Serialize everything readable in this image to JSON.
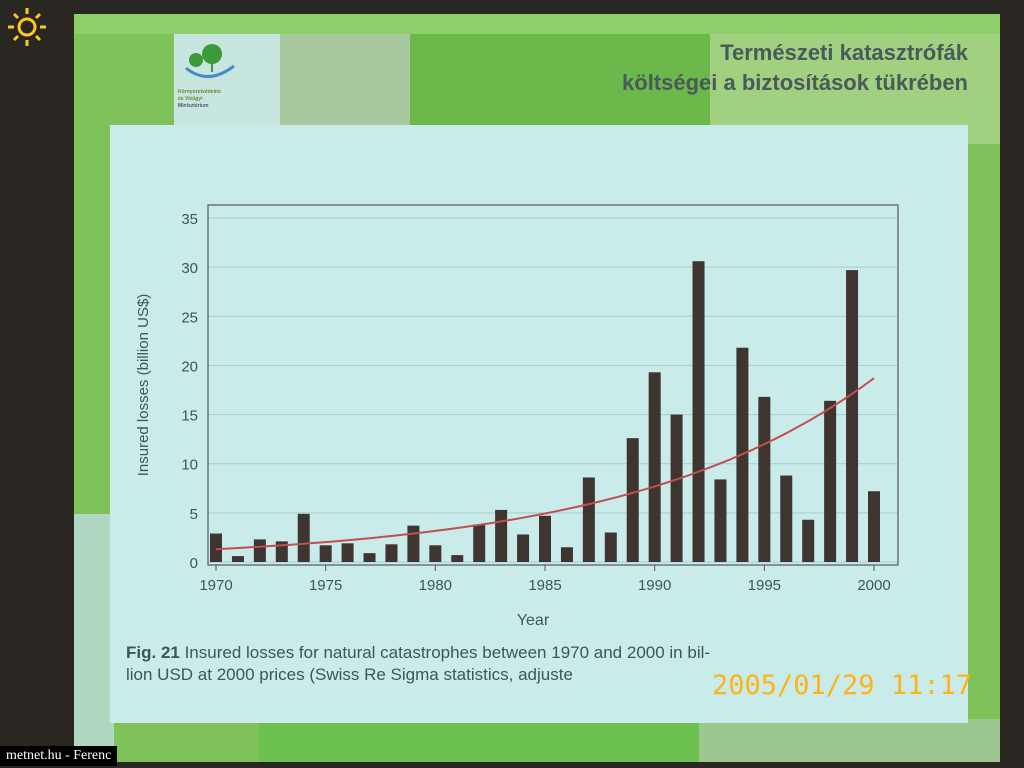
{
  "slide": {
    "title_line1": "Természeti katasztrófák",
    "title_line2": "költségei a biztosítások tükrében",
    "logo_text": [
      "Környezetvédelmi",
      "és Vízügyi",
      "Minisztérium"
    ],
    "caption_label": "Fig. 21",
    "caption_line1": " Insured losses for natural catastrophes between 1970 and 2000 in bil-",
    "caption_line2": "lion USD at 2000 prices (Swiss Re Sigma statistics, adjuste"
  },
  "photo": {
    "timestamp": "2005/01/29  11:17",
    "credit": "metnet.hu - Ferenc",
    "timestamp_color": "#ffb21a"
  },
  "chart_data": {
    "type": "bar",
    "title": "",
    "xlabel": "Year",
    "ylabel": "Insured losses (billion US$)",
    "ylim": [
      0,
      35
    ],
    "yticks": [
      0,
      5,
      10,
      15,
      20,
      25,
      30,
      35
    ],
    "xticks": [
      1970,
      1975,
      1980,
      1985,
      1990,
      1995,
      2000
    ],
    "grid": true,
    "bar_color": "#3e3430",
    "trend_color": "#c05050",
    "categories": [
      1970,
      1971,
      1972,
      1973,
      1974,
      1975,
      1976,
      1977,
      1978,
      1979,
      1980,
      1981,
      1982,
      1983,
      1984,
      1985,
      1986,
      1987,
      1988,
      1989,
      1990,
      1991,
      1992,
      1993,
      1994,
      1995,
      1996,
      1997,
      1998,
      1999,
      2000
    ],
    "values": [
      2.9,
      0.6,
      2.3,
      2.1,
      4.9,
      1.7,
      1.9,
      0.9,
      1.8,
      3.7,
      1.7,
      0.7,
      3.8,
      5.3,
      2.8,
      4.7,
      1.5,
      8.6,
      3.0,
      12.6,
      19.3,
      15.0,
      30.6,
      8.4,
      21.8,
      16.8,
      8.8,
      4.3,
      16.4,
      29.7,
      7.2
    ],
    "trend": {
      "type": "exponential",
      "start": [
        1970,
        1.3
      ],
      "end": [
        2000,
        18.7
      ]
    }
  }
}
